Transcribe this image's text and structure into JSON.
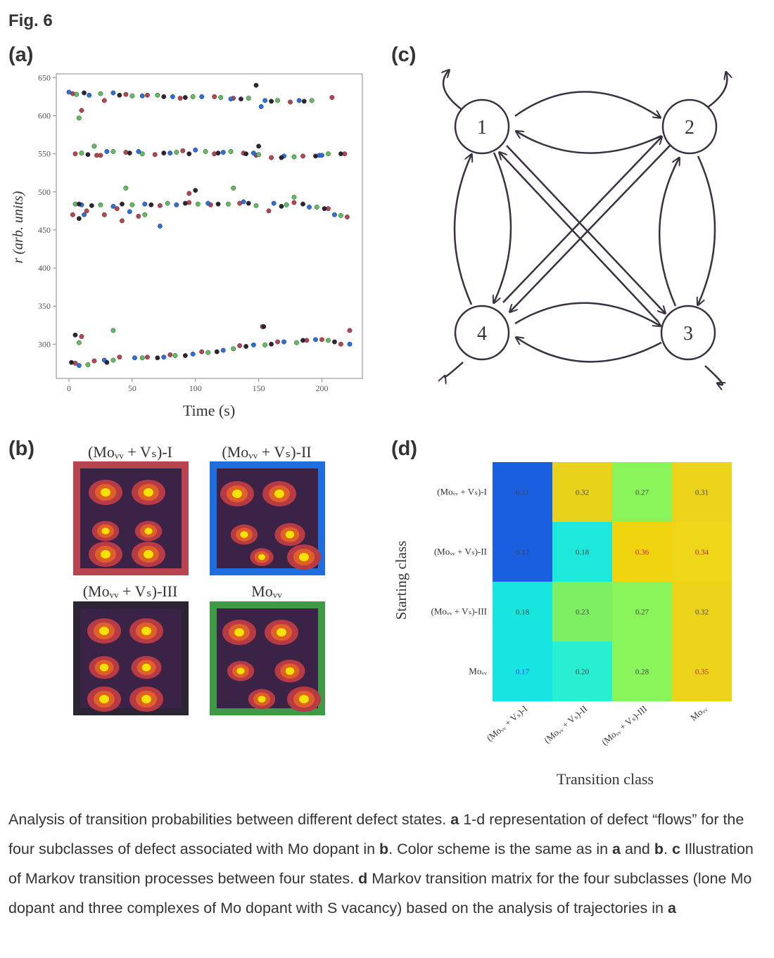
{
  "figure_title": "Fig. 6",
  "panels": {
    "a": "(a)",
    "b": "(b)",
    "c": "(c)",
    "d": "(d)"
  },
  "colors": {
    "red": "#b8444f",
    "blue": "#2a6fe0",
    "green": "#5fbf5f",
    "black": "#2a2433",
    "dark_bg": "#3a2346",
    "blob_orange": "#e0602a",
    "blob_yellow": "#f5e200"
  },
  "panel_b": {
    "titles": [
      "(Moᵥᵥ + Vₛ)-I",
      "(Moᵥᵥ + Vₛ)-II",
      "(Moᵥᵥ + Vₛ)-III",
      "Moᵥᵥ"
    ],
    "frame_colors": [
      "#b8444f",
      "#1f6ee0",
      "#2a2433",
      "#3f9a45"
    ]
  },
  "panel_c": {
    "nodes": [
      "1",
      "2",
      "3",
      "4"
    ]
  },
  "chart_data": [
    {
      "type": "scatter",
      "panel": "a",
      "xlabel": "Time (s)",
      "ylabel": "r (arb. units)",
      "xlim": [
        -10,
        232
      ],
      "ylim": [
        255,
        655
      ],
      "xticks": [
        0,
        50,
        100,
        150,
        200
      ],
      "yticks": [
        300,
        350,
        400,
        450,
        500,
        550,
        600,
        650
      ],
      "grid": false,
      "series": [
        {
          "color": "#b8444f",
          "points": [
            [
              3,
              629
            ],
            [
              10,
              607
            ],
            [
              28,
              620
            ],
            [
              45,
              628
            ],
            [
              62,
              627
            ],
            [
              88,
              623
            ],
            [
              115,
              625
            ],
            [
              130,
              623
            ],
            [
              175,
              618
            ],
            [
              208,
              624
            ],
            [
              5,
              550
            ],
            [
              22,
              548
            ],
            [
              45,
              552
            ],
            [
              68,
              549
            ],
            [
              90,
              554
            ],
            [
              115,
              550
            ],
            [
              138,
              551
            ],
            [
              160,
              545
            ],
            [
              185,
              547
            ],
            [
              218,
              550
            ],
            [
              3,
              470
            ],
            [
              14,
              475
            ],
            [
              28,
              470
            ],
            [
              38,
              478
            ],
            [
              55,
              468
            ],
            [
              72,
              482
            ],
            [
              95,
              486
            ],
            [
              112,
              483
            ],
            [
              135,
              485
            ],
            [
              158,
              475
            ],
            [
              178,
              486
            ],
            [
              205,
              478
            ],
            [
              220,
              467
            ],
            [
              5,
              275
            ],
            [
              20,
              278
            ],
            [
              40,
              283
            ],
            [
              62,
              283
            ],
            [
              80,
              286
            ],
            [
              105,
              290
            ],
            [
              135,
              298
            ],
            [
              165,
              303
            ],
            [
              188,
              305
            ],
            [
              200,
              306
            ],
            [
              215,
              300
            ],
            [
              10,
              310
            ],
            [
              153,
              323
            ],
            [
              222,
              318
            ],
            [
              25,
              548
            ],
            [
              42,
              462
            ],
            [
              95,
              498
            ],
            [
              148,
              548
            ]
          ]
        },
        {
          "color": "#2a6fe0",
          "points": [
            [
              0,
              631
            ],
            [
              16,
              627
            ],
            [
              35,
              630
            ],
            [
              58,
              626
            ],
            [
              82,
              625
            ],
            [
              105,
              625
            ],
            [
              128,
              622
            ],
            [
              155,
              620
            ],
            [
              182,
              620
            ],
            [
              30,
              553
            ],
            [
              55,
              553
            ],
            [
              80,
              551
            ],
            [
              100,
              555
            ],
            [
              122,
              552
            ],
            [
              146,
              551
            ],
            [
              170,
              547
            ],
            [
              198,
              548
            ],
            [
              10,
              483
            ],
            [
              35,
              481
            ],
            [
              60,
              484
            ],
            [
              85,
              483
            ],
            [
              110,
              485
            ],
            [
              138,
              487
            ],
            [
              162,
              485
            ],
            [
              190,
              480
            ],
            [
              210,
              470
            ],
            [
              8,
              272
            ],
            [
              28,
              279
            ],
            [
              52,
              282
            ],
            [
              75,
              283
            ],
            [
              98,
              287
            ],
            [
              122,
              292
            ],
            [
              146,
              299
            ],
            [
              170,
              303
            ],
            [
              195,
              306
            ],
            [
              222,
              300
            ],
            [
              12,
              470
            ],
            [
              48,
              474
            ],
            [
              72,
              455
            ],
            [
              152,
              612
            ],
            [
              200,
              548
            ]
          ]
        },
        {
          "color": "#5fbf5f",
          "points": [
            [
              6,
              628
            ],
            [
              25,
              629
            ],
            [
              50,
              626
            ],
            [
              70,
              627
            ],
            [
              98,
              625
            ],
            [
              120,
              624
            ],
            [
              142,
              623
            ],
            [
              165,
              620
            ],
            [
              192,
              620
            ],
            [
              10,
              551
            ],
            [
              35,
              553
            ],
            [
              58,
              550
            ],
            [
              85,
              552
            ],
            [
              108,
              553
            ],
            [
              128,
              553
            ],
            [
              150,
              549
            ],
            [
              178,
              546
            ],
            [
              205,
              550
            ],
            [
              5,
              484
            ],
            [
              25,
              483
            ],
            [
              50,
              483
            ],
            [
              78,
              485
            ],
            [
              102,
              484
            ],
            [
              126,
              484
            ],
            [
              148,
              482
            ],
            [
              172,
              483
            ],
            [
              196,
              480
            ],
            [
              215,
              469
            ],
            [
              15,
              273
            ],
            [
              35,
              279
            ],
            [
              58,
              282
            ],
            [
              84,
              285
            ],
            [
              110,
              289
            ],
            [
              130,
              294
            ],
            [
              155,
              299
            ],
            [
              180,
              302
            ],
            [
              205,
              305
            ],
            [
              8,
              302
            ],
            [
              35,
              318
            ],
            [
              8,
              597
            ],
            [
              20,
              560
            ],
            [
              45,
              505
            ],
            [
              130,
              505
            ],
            [
              178,
              493
            ],
            [
              60,
              470
            ]
          ]
        },
        {
          "color": "#2a2433",
          "points": [
            [
              12,
              630
            ],
            [
              40,
              627
            ],
            [
              75,
              625
            ],
            [
              92,
              624
            ],
            [
              136,
              622
            ],
            [
              148,
              640
            ],
            [
              160,
              619
            ],
            [
              186,
              619
            ],
            [
              15,
              549
            ],
            [
              48,
              551
            ],
            [
              75,
              551
            ],
            [
              95,
              550
            ],
            [
              118,
              551
            ],
            [
              140,
              550
            ],
            [
              168,
              545
            ],
            [
              195,
              547
            ],
            [
              215,
              550
            ],
            [
              8,
              484
            ],
            [
              18,
              482
            ],
            [
              42,
              484
            ],
            [
              65,
              483
            ],
            [
              92,
              485
            ],
            [
              118,
              484
            ],
            [
              142,
              485
            ],
            [
              168,
              481
            ],
            [
              185,
              484
            ],
            [
              202,
              478
            ],
            [
              2,
              276
            ],
            [
              30,
              276
            ],
            [
              70,
              282
            ],
            [
              92,
              285
            ],
            [
              117,
              290
            ],
            [
              140,
              297
            ],
            [
              160,
              300
            ],
            [
              185,
              305
            ],
            [
              210,
              303
            ],
            [
              5,
              312
            ],
            [
              154,
              323
            ],
            [
              8,
              465
            ],
            [
              100,
              502
            ],
            [
              150,
              560
            ]
          ]
        }
      ]
    },
    {
      "type": "heatmap",
      "panel": "d",
      "xlabel": "Transition class",
      "ylabel": "Starting class",
      "rows": [
        "(Moᵥᵥ + Vₛ)-I",
        "(Moᵥᵥ + Vₛ)-II",
        "(Moᵥᵥ + Vₛ)-III",
        "Moᵥᵥ"
      ],
      "cols": [
        "(Moᵥᵥ + Vₛ)-I",
        "(Moᵥᵥ + Vₛ)-II",
        "(Moᵥᵥ + Vₛ)-III",
        "Moᵥᵥ"
      ],
      "values": [
        [
          "0.11",
          "0.32",
          "0.27",
          "0.31"
        ],
        [
          "0.12",
          "0.18",
          "0.36",
          "0.34"
        ],
        [
          "0.18",
          "0.23",
          "0.27",
          "0.32"
        ],
        [
          "0.17",
          "0.20",
          "0.28",
          "0.35"
        ]
      ],
      "cell_colors": [
        [
          "#1a5fe0",
          "#e8d21a",
          "#8af55a",
          "#ecd41a"
        ],
        [
          "#1a5fe0",
          "#1ee8dc",
          "#f0d410",
          "#eed618"
        ],
        [
          "#16e6de",
          "#7cf062",
          "#8af55a",
          "#ecd41a"
        ],
        [
          "#18e4e2",
          "#28eed2",
          "#8af55a",
          "#ecd41a"
        ]
      ],
      "text_colors": [
        [
          "#444",
          "#444",
          "#444",
          "#444"
        ],
        [
          "#444",
          "#444",
          "#d02030",
          "#c02030"
        ],
        [
          "#444",
          "#444",
          "#444",
          "#444"
        ],
        [
          "#2244ee",
          "#444",
          "#444",
          "#c02030"
        ]
      ]
    }
  ],
  "caption": {
    "s1": "Analysis of transition probabilities between different defect states. ",
    "b1": "a",
    "s2": " 1-d representation of defect “flows” for the four subclasses of defect associated with Mo dopant in ",
    "b2": "b",
    "s3": ". Color scheme is the same as in ",
    "b3": "a",
    "s4": " and ",
    "b4": "b",
    "s5": ". ",
    "b5": "c",
    "s6": " Illustration of Markov transition processes between four states. ",
    "b6": "d",
    "s7": " Markov transition matrix for the four subclasses (lone Mo dopant and three complexes of Mo dopant with S vacancy) based on the analysis of trajectories in ",
    "b7": "a"
  }
}
